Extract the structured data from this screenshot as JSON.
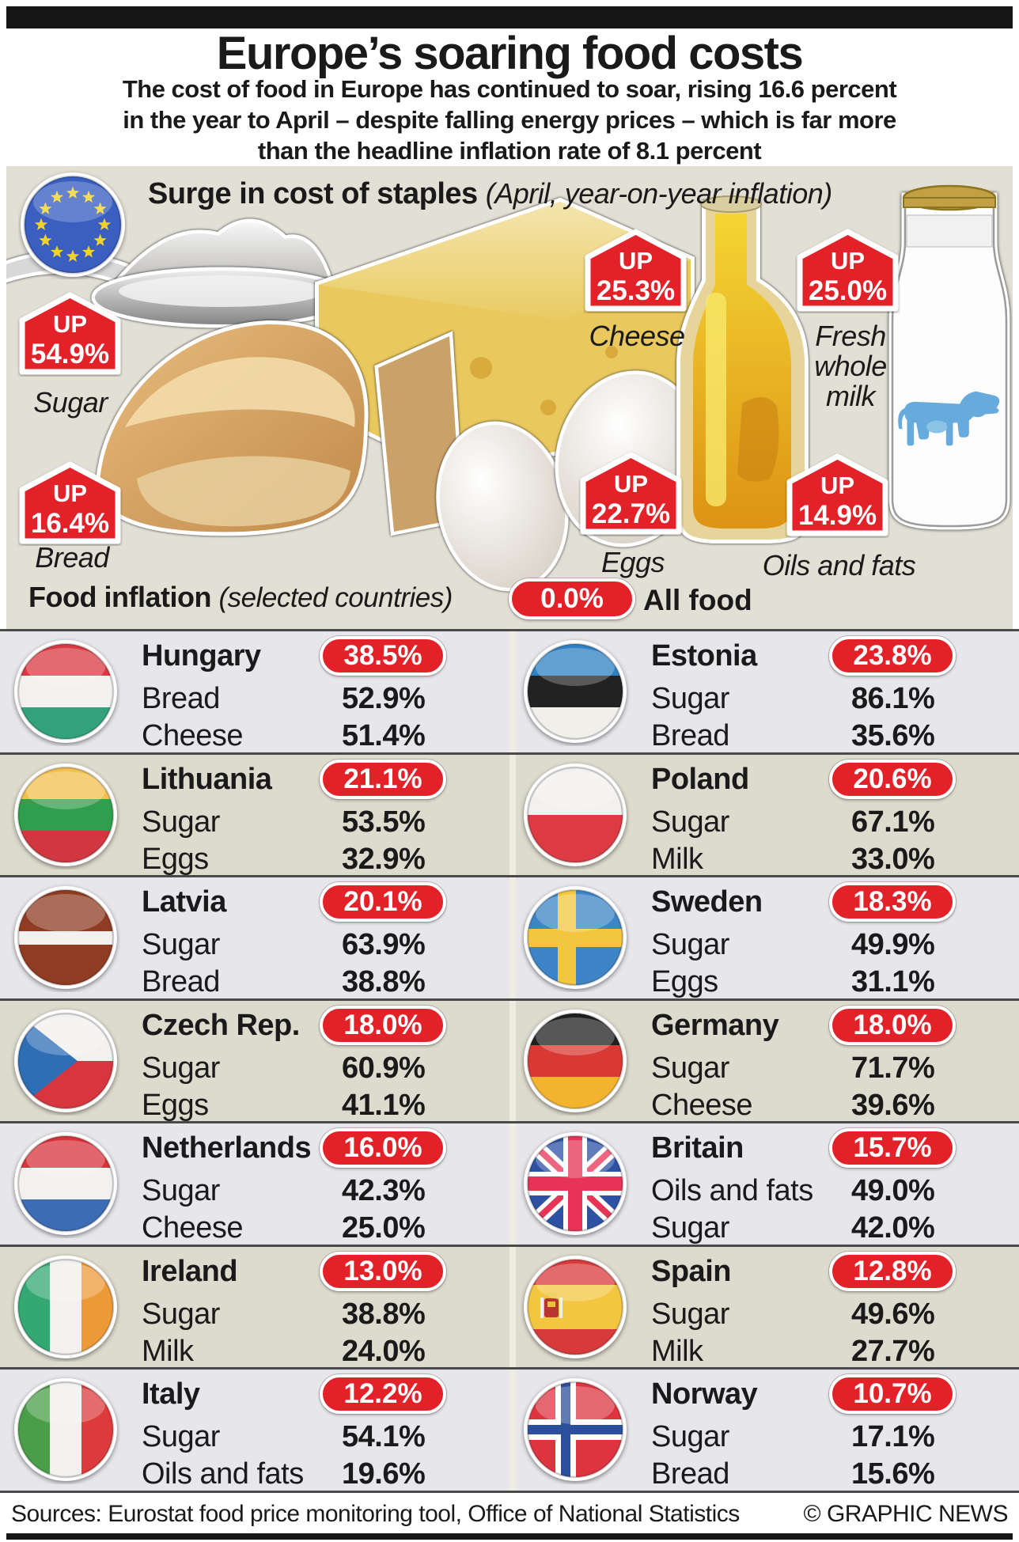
{
  "palette": {
    "accent_red": "#e22128",
    "panel_bg": "#e2e0d5",
    "row_bg_light": "#e6e6eb",
    "row_bg_dark": "#dcdbcd",
    "divider_grey": "#4a4a4a",
    "bar_black": "#161616",
    "milk_cow_blue": "#66abdb",
    "eu_flag_blue": "#3a5fc0",
    "eu_star_yellow": "#f3d22b"
  },
  "masthead": {
    "title": "Europe’s soaring food costs",
    "subtitle_lines": [
      "The cost of food in Europe has continued to soar, rising 16.6 percent",
      "in the year to April – despite falling energy prices – which is far more",
      "than the headline inflation rate of 8.1 percent"
    ]
  },
  "staples_section": {
    "heading": "Surge in cost of staples",
    "heading_note": "(April, year-on-year inflation)",
    "up_word": "UP"
  },
  "countries_section": {
    "heading": "Food inflation",
    "heading_note": "(selected countries)",
    "legend_value": "0.0%",
    "legend_label": "All food"
  },
  "footer": {
    "sources": "Sources: Eurostat food price monitoring tool, Office of National Statistics",
    "credit": "© GRAPHIC NEWS"
  },
  "chart_data": {
    "type": "table",
    "title": "Europe’s soaring food costs",
    "staples_april_yoy_inflation_pct": [
      {
        "id": "sugar",
        "item": "Sugar",
        "pct": 54.9
      },
      {
        "id": "cheese",
        "item": "Cheese",
        "pct": 25.3
      },
      {
        "id": "fresh-whole-milk",
        "item": "Fresh whole milk",
        "pct": 25.0
      },
      {
        "id": "bread",
        "item": "Bread",
        "pct": 16.4
      },
      {
        "id": "eggs",
        "item": "Eggs",
        "pct": 22.7
      },
      {
        "id": "oils-and-fats",
        "item": "Oils and fats",
        "pct": 14.9
      }
    ],
    "food_inflation_selected_countries": [
      {
        "country": "Hungary",
        "flag": "hungary",
        "all_food_pct": 38.5,
        "items": [
          {
            "item": "Bread",
            "pct": 52.9
          },
          {
            "item": "Cheese",
            "pct": 51.4
          }
        ]
      },
      {
        "country": "Estonia",
        "flag": "estonia",
        "all_food_pct": 23.8,
        "items": [
          {
            "item": "Sugar",
            "pct": 86.1
          },
          {
            "item": "Bread",
            "pct": 35.6
          }
        ]
      },
      {
        "country": "Lithuania",
        "flag": "lithuania",
        "all_food_pct": 21.1,
        "items": [
          {
            "item": "Sugar",
            "pct": 53.5
          },
          {
            "item": "Eggs",
            "pct": 32.9
          }
        ]
      },
      {
        "country": "Poland",
        "flag": "poland",
        "all_food_pct": 20.6,
        "items": [
          {
            "item": "Sugar",
            "pct": 67.1
          },
          {
            "item": "Milk",
            "pct": 33.0
          }
        ]
      },
      {
        "country": "Latvia",
        "flag": "latvia",
        "all_food_pct": 20.1,
        "items": [
          {
            "item": "Sugar",
            "pct": 63.9
          },
          {
            "item": "Bread",
            "pct": 38.8
          }
        ]
      },
      {
        "country": "Sweden",
        "flag": "sweden",
        "all_food_pct": 18.3,
        "items": [
          {
            "item": "Sugar",
            "pct": 49.9
          },
          {
            "item": "Eggs",
            "pct": 31.1
          }
        ]
      },
      {
        "country": "Czech Rep.",
        "flag": "czech",
        "all_food_pct": 18.0,
        "items": [
          {
            "item": "Sugar",
            "pct": 60.9
          },
          {
            "item": "Eggs",
            "pct": 41.1
          }
        ]
      },
      {
        "country": "Germany",
        "flag": "germany",
        "all_food_pct": 18.0,
        "items": [
          {
            "item": "Sugar",
            "pct": 71.7
          },
          {
            "item": "Cheese",
            "pct": 39.6
          }
        ]
      },
      {
        "country": "Netherlands",
        "flag": "netherlands",
        "all_food_pct": 16.0,
        "items": [
          {
            "item": "Sugar",
            "pct": 42.3
          },
          {
            "item": "Cheese",
            "pct": 25.0
          }
        ]
      },
      {
        "country": "Britain",
        "flag": "britain",
        "all_food_pct": 15.7,
        "items": [
          {
            "item": "Oils and fats",
            "pct": 49.0
          },
          {
            "item": "Sugar",
            "pct": 42.0
          }
        ]
      },
      {
        "country": "Ireland",
        "flag": "ireland",
        "all_food_pct": 13.0,
        "items": [
          {
            "item": "Sugar",
            "pct": 38.8
          },
          {
            "item": "Milk",
            "pct": 24.0
          }
        ]
      },
      {
        "country": "Spain",
        "flag": "spain",
        "all_food_pct": 12.8,
        "items": [
          {
            "item": "Sugar",
            "pct": 49.6
          },
          {
            "item": "Milk",
            "pct": 27.7
          }
        ]
      },
      {
        "country": "Italy",
        "flag": "italy",
        "all_food_pct": 12.2,
        "items": [
          {
            "item": "Sugar",
            "pct": 54.1
          },
          {
            "item": "Oils and fats",
            "pct": 19.6
          }
        ]
      },
      {
        "country": "Norway",
        "flag": "norway",
        "all_food_pct": 10.7,
        "items": [
          {
            "item": "Sugar",
            "pct": 17.1
          },
          {
            "item": "Bread",
            "pct": 15.6
          }
        ]
      }
    ]
  }
}
